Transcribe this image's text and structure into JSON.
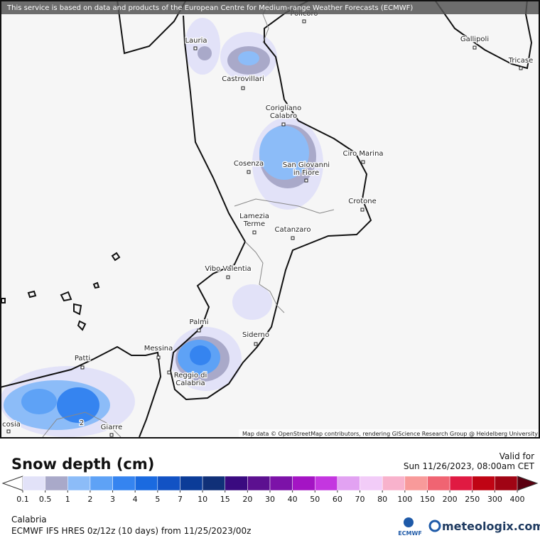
{
  "banner": "This service is based on data and products of the European Centre for Medium-range Weather Forecasts (ECMWF)",
  "attribution": "Map data © OpenStreetMap contributors, rendering GIScience Research Group @ Heidelberg University",
  "cities": [
    [
      "Policoro"
    ],
    [
      "Lauria"
    ],
    [
      "Gallipoli"
    ],
    [
      "Tricase"
    ],
    [
      "Castrovillari"
    ],
    [
      "Corigliano",
      "Calabro"
    ],
    [
      "Cosenza"
    ],
    [
      "San Giovanni",
      "in Fiore"
    ],
    [
      "Ciro Marina"
    ],
    [
      "Crotone"
    ],
    [
      "Lamezia",
      "Terme"
    ],
    [
      "Catanzaro"
    ],
    [
      "Vibo Valentia"
    ],
    [
      "Palmi"
    ],
    [
      "Siderno"
    ],
    [
      "Messina"
    ],
    [
      "Reggio di",
      "Calabria"
    ],
    [
      "Patti"
    ],
    [
      "Giarre"
    ],
    [
      "cosia"
    ],
    [
      "2"
    ]
  ],
  "legend": {
    "title": "Snow depth (cm)",
    "valid_label": "Valid for",
    "valid_time": "Sun 11/26/2023, 08:00am CET",
    "ticks": [
      0.1,
      0.5,
      1,
      2,
      3,
      4,
      5,
      7,
      10,
      15,
      20,
      30,
      40,
      50,
      60,
      70,
      80,
      100,
      150,
      200,
      250,
      300,
      400
    ],
    "colors": [
      "#e2e2f8",
      "#a9a9c9",
      "#8cbcf8",
      "#5ea2f6",
      "#3584f0",
      "#1a6ae0",
      "#1252c4",
      "#0b3c98",
      "#103078",
      "#3a0a80",
      "#5c1090",
      "#7c12a8",
      "#a414c4",
      "#c436e0",
      "#e2a2f2",
      "#f2ccf8",
      "#f8b2cc",
      "#f89a9a",
      "#f06472",
      "#e01a42",
      "#c00414",
      "#a00414",
      "#800414"
    ],
    "under_color": "#ffffff",
    "over_color": "#5a0010"
  },
  "footer": {
    "region": "Calabria",
    "model": "ECMWF IFS HRES 0z/12z (10 days) from 11/25/2023/00z",
    "ecmwf": "ECMWF",
    "brand": "meteologix.com"
  }
}
